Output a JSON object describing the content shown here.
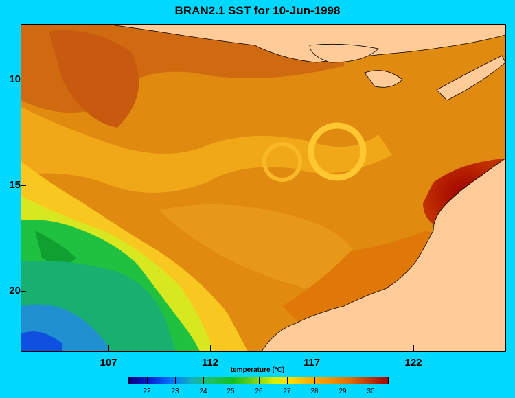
{
  "title": "BRAN2.1 SST for 10-Jun-1998",
  "y_axis": {
    "ticks": [
      "10",
      "15",
      "20"
    ]
  },
  "x_axis": {
    "ticks": [
      "107",
      "112",
      "117",
      "122"
    ]
  },
  "colorbar": {
    "title": "temperature (°C)",
    "ticks": [
      "22",
      "23",
      "24",
      "25",
      "26",
      "27",
      "28",
      "29",
      "30"
    ]
  },
  "colors": {
    "background": "#00d8ff",
    "land": "#ffcc99",
    "warm": "#e08a10",
    "hot": "#a00000",
    "cool": "#20c060"
  }
}
